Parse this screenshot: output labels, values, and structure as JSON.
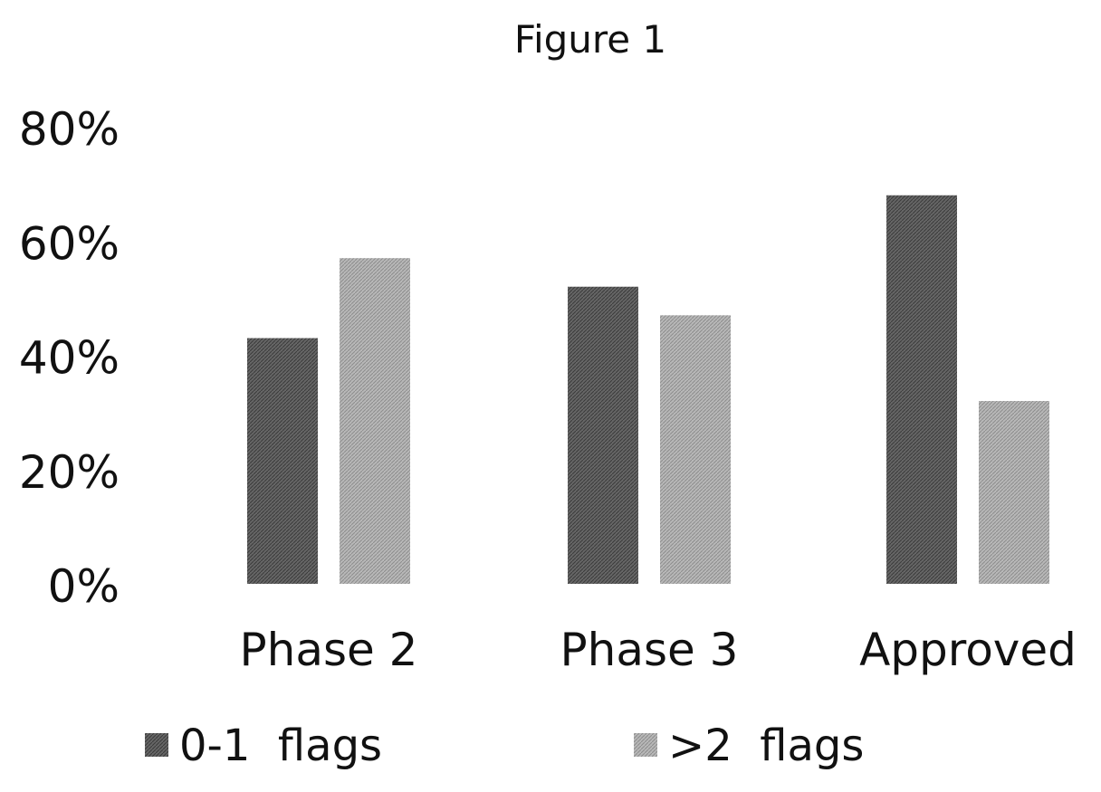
{
  "chart_data": {
    "type": "bar",
    "title": "Figure 1",
    "xlabel": "",
    "ylabel": "",
    "categories": [
      "Phase 2",
      "Phase 3",
      "Approved"
    ],
    "series": [
      {
        "name": "0-1  flags",
        "values": [
          43,
          52,
          68
        ],
        "color": "#555555"
      },
      {
        "name": ">2  flags",
        "values": [
          57,
          47,
          32
        ],
        "color": "#a9a9a9"
      }
    ],
    "ylim": [
      0,
      80
    ],
    "yticks": [
      0,
      20,
      40,
      60,
      80
    ],
    "ytick_labels": [
      "0%",
      "20%",
      "40%",
      "60%",
      "80%"
    ],
    "grid": false,
    "legend": "bottom"
  }
}
